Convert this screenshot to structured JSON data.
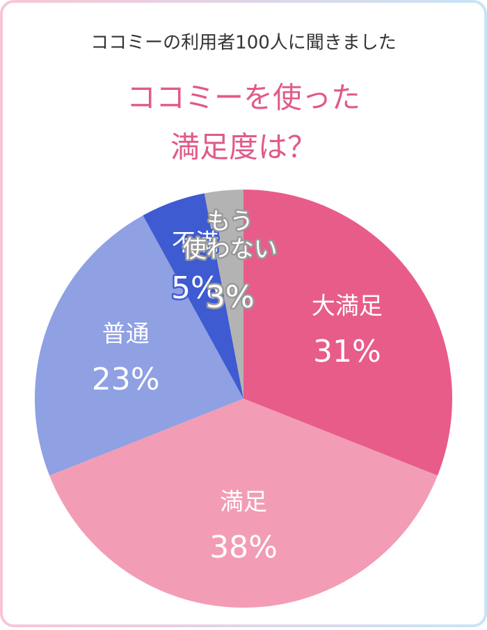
{
  "chart_data": {
    "type": "pie",
    "subtitle": "ココミーの利用者100人に聞きました",
    "title": [
      "ココミーを使った",
      "満足度は？"
    ],
    "categories": [
      "大満足",
      "満足",
      "普通",
      "不満",
      "もう使わない"
    ],
    "values": [
      31,
      38,
      23,
      5,
      3
    ],
    "value_labels": [
      "31%",
      "38%",
      "23%",
      "5%",
      "3%"
    ],
    "colors": [
      "#e85c8a",
      "#f29db5",
      "#8fa0e3",
      "#3f5bd1",
      "#b3b3b3"
    ]
  }
}
